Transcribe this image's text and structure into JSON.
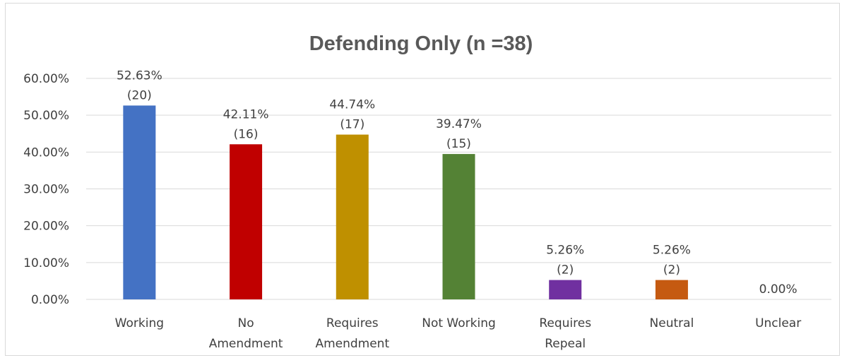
{
  "chart_data": {
    "type": "bar",
    "title": "Defending Only (n =38)",
    "xlabel": "",
    "ylabel": "",
    "ylim": [
      0,
      60
    ],
    "ytick_values": [
      0,
      10,
      20,
      30,
      40,
      50,
      60
    ],
    "ytick_labels": [
      "0.00%",
      "10.00%",
      "20.00%",
      "30.00%",
      "40.00%",
      "50.00%",
      "60.00%"
    ],
    "grid": true,
    "legend": "none",
    "categories": [
      "Working",
      "No Amendment",
      "Requires Amendment",
      "Not Working",
      "Requires Repeal",
      "Neutral",
      "Unclear"
    ],
    "category_lines": [
      [
        "Working"
      ],
      [
        "No",
        "Amendment"
      ],
      [
        "Requires",
        "Amendment"
      ],
      [
        "Not Working"
      ],
      [
        "Requires",
        "Repeal"
      ],
      [
        "Neutral"
      ],
      [
        "Unclear"
      ]
    ],
    "values": [
      52.63,
      42.11,
      44.74,
      39.47,
      5.26,
      5.26,
      0.0
    ],
    "data_labels": [
      [
        "52.63%",
        "(20)"
      ],
      [
        "42.11%",
        "(16)"
      ],
      [
        "44.74%",
        "(17)"
      ],
      [
        "39.47%",
        "(15)"
      ],
      [
        "5.26%",
        "(2)"
      ],
      [
        "5.26%",
        "(2)"
      ],
      [
        "0.00%"
      ]
    ],
    "colors": [
      "#4472c4",
      "#c00000",
      "#bf9000",
      "#548235",
      "#7030a0",
      "#c55a11",
      "#a5a5a5"
    ]
  }
}
